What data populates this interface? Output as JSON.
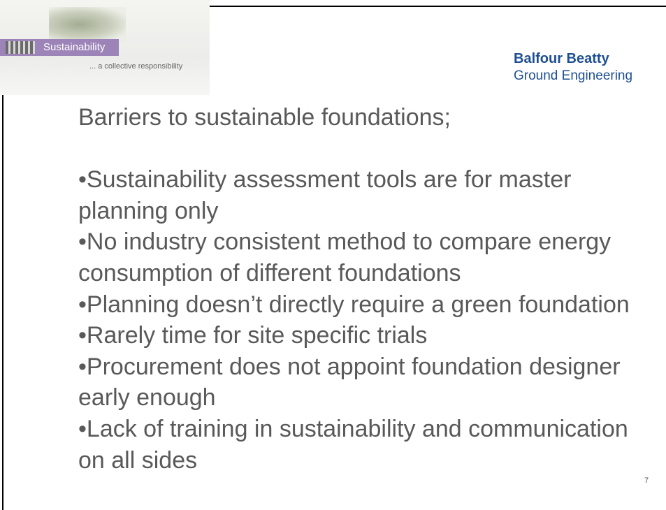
{
  "header": {
    "logo_title": "Sustainability",
    "logo_subtitle": "... a collective responsibility",
    "company": "Balfour Beatty",
    "division": "Ground Engineering"
  },
  "title": "Barriers to sustainable foundations;",
  "bullets": [
    "Sustainability assessment tools are for master planning only",
    "No industry consistent method to compare energy consumption of different foundations",
    "Planning doesn’t directly require a green foundation",
    "Rarely time for site specific trials",
    "Procurement does not appoint foundation designer early enough",
    "Lack of training in sustainability and communication on all sides"
  ],
  "page_number": "7"
}
